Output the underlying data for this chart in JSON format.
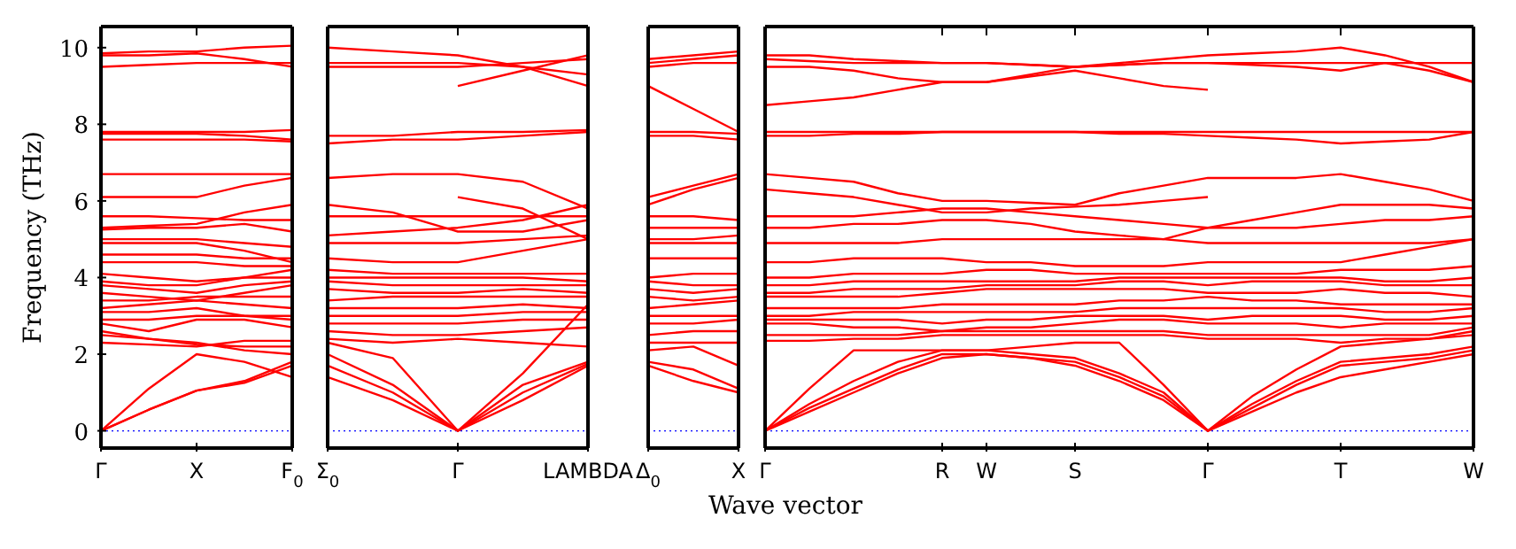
{
  "chart_data": [
    {
      "type": "line",
      "ylabel": "Frequency (THz)",
      "categories": [
        "Γ",
        null,
        "X",
        null,
        "F$_{0}$"
      ],
      "ylim": [
        -0.45,
        10.55
      ],
      "yticks": [
        0,
        2,
        4,
        6,
        8,
        10
      ],
      "grid": false,
      "ref_lines": [
        {
          "axis": "y",
          "value": 0,
          "color": "#0000ff",
          "line_style": "dotted"
        }
      ],
      "series": [
        {
          "color": "#ff0000",
          "values": [
            0,
            0.55,
            1.05,
            1.3,
            1.8
          ]
        },
        {
          "color": "#ff0000",
          "values": [
            0,
            0.55,
            1.05,
            1.25,
            1.7
          ]
        },
        {
          "color": "#ff0000",
          "values": [
            0,
            1.1,
            2.0,
            1.8,
            1.4
          ]
        },
        {
          "color": "#ff0000",
          "values": [
            2.3,
            2.25,
            2.2,
            2.35,
            2.35
          ]
        },
        {
          "color": "#ff0000",
          "values": [
            2.5,
            2.4,
            2.3,
            2.1,
            2.0
          ]
        },
        {
          "color": "#ff0000",
          "values": [
            2.6,
            2.4,
            2.25,
            2.2,
            2.2
          ]
        },
        {
          "color": "#ff0000",
          "values": [
            2.8,
            2.6,
            2.9,
            2.9,
            2.7
          ]
        },
        {
          "color": "#ff0000",
          "values": [
            2.9,
            2.9,
            3.0,
            3.0,
            3.0
          ]
        },
        {
          "color": "#ff0000",
          "values": [
            3.1,
            3.1,
            3.2,
            3.0,
            2.9
          ]
        },
        {
          "color": "#ff0000",
          "values": [
            3.2,
            3.3,
            3.4,
            3.3,
            3.2
          ]
        },
        {
          "color": "#ff0000",
          "values": [
            3.4,
            3.4,
            3.5,
            3.5,
            3.5
          ]
        },
        {
          "color": "#ff0000",
          "values": [
            3.6,
            3.5,
            3.4,
            3.6,
            3.8
          ]
        },
        {
          "color": "#ff0000",
          "values": [
            3.8,
            3.7,
            3.6,
            3.8,
            3.9
          ]
        },
        {
          "color": "#ff0000",
          "values": [
            3.9,
            3.8,
            3.8,
            4.0,
            4.2
          ]
        },
        {
          "color": "#ff0000",
          "values": [
            4.1,
            4.0,
            3.9,
            4.0,
            4.0
          ]
        },
        {
          "color": "#ff0000",
          "values": [
            4.4,
            4.4,
            4.4,
            4.3,
            4.3
          ]
        },
        {
          "color": "#ff0000",
          "values": [
            4.6,
            4.6,
            4.6,
            4.5,
            4.5
          ]
        },
        {
          "color": "#ff0000",
          "values": [
            4.9,
            4.9,
            4.9,
            4.7,
            4.4
          ]
        },
        {
          "color": "#ff0000",
          "values": [
            5.0,
            5.0,
            5.0,
            4.9,
            4.8
          ]
        },
        {
          "color": "#ff0000",
          "values": [
            5.25,
            5.3,
            5.3,
            5.4,
            5.2
          ]
        },
        {
          "color": "#ff0000",
          "values": [
            5.3,
            5.35,
            5.4,
            5.7,
            5.9
          ]
        },
        {
          "color": "#ff0000",
          "values": [
            5.6,
            5.6,
            5.55,
            5.5,
            5.5
          ]
        },
        {
          "color": "#ff0000",
          "values": [
            6.1,
            6.1,
            6.1,
            6.4,
            6.6
          ]
        },
        {
          "color": "#ff0000",
          "values": [
            6.7,
            6.7,
            6.7,
            6.7,
            6.7
          ]
        },
        {
          "color": "#ff0000",
          "values": [
            7.6,
            7.6,
            7.6,
            7.6,
            7.55
          ]
        },
        {
          "color": "#ff0000",
          "values": [
            7.75,
            7.75,
            7.75,
            7.7,
            7.6
          ]
        },
        {
          "color": "#ff0000",
          "values": [
            7.8,
            7.8,
            7.8,
            7.8,
            7.85
          ]
        },
        {
          "color": "#ff0000",
          "values": [
            9.5,
            9.55,
            9.6,
            9.6,
            9.6
          ]
        },
        {
          "color": "#ff0000",
          "values": [
            9.8,
            9.8,
            9.85,
            9.7,
            9.5
          ]
        },
        {
          "color": "#ff0000",
          "values": [
            9.85,
            9.9,
            9.9,
            10.0,
            10.05
          ]
        }
      ]
    },
    {
      "type": "line",
      "tick_labels": "x",
      "categories": [
        "Σ$_{0}$",
        null,
        "Γ",
        null,
        "LAMBDA"
      ],
      "ylim": [
        -0.45,
        10.55
      ],
      "grid": false,
      "ref_lines": [
        {
          "axis": "y",
          "value": 0,
          "color": "#0000ff",
          "line_style": "dotted"
        }
      ],
      "series": [
        {
          "color": "#ff0000",
          "values": [
            1.4,
            0.8,
            0,
            0.8,
            1.7
          ]
        },
        {
          "color": "#ff0000",
          "values": [
            1.7,
            1.0,
            0,
            1.0,
            1.75
          ]
        },
        {
          "color": "#ff0000",
          "values": [
            2.0,
            1.2,
            0,
            1.2,
            1.8
          ]
        },
        {
          "color": "#ff0000",
          "values": [
            2.3,
            1.9,
            0,
            1.5,
            3.3
          ]
        },
        {
          "color": "#ff0000",
          "values": [
            2.4,
            2.3,
            2.4,
            2.3,
            2.2
          ]
        },
        {
          "color": "#ff0000",
          "values": [
            2.6,
            2.5,
            2.5,
            2.6,
            2.7
          ]
        },
        {
          "color": "#ff0000",
          "values": [
            2.8,
            2.8,
            2.8,
            2.9,
            2.9
          ]
        },
        {
          "color": "#ff0000",
          "values": [
            3.0,
            3.0,
            3.0,
            3.1,
            3.1
          ]
        },
        {
          "color": "#ff0000",
          "values": [
            3.2,
            3.2,
            3.2,
            3.3,
            3.2
          ]
        },
        {
          "color": "#ff0000",
          "values": [
            3.4,
            3.5,
            3.5,
            3.5,
            3.5
          ]
        },
        {
          "color": "#ff0000",
          "values": [
            3.7,
            3.6,
            3.6,
            3.7,
            3.6
          ]
        },
        {
          "color": "#ff0000",
          "values": [
            3.9,
            3.8,
            3.8,
            3.8,
            3.8
          ]
        },
        {
          "color": "#ff0000",
          "values": [
            4.0,
            4.0,
            4.0,
            4.0,
            3.9
          ]
        },
        {
          "color": "#ff0000",
          "values": [
            4.2,
            4.1,
            4.1,
            4.1,
            4.1
          ]
        },
        {
          "color": "#ff0000",
          "values": [
            4.5,
            4.4,
            4.4,
            4.7,
            5.0
          ]
        },
        {
          "color": "#ff0000",
          "values": [
            4.9,
            4.9,
            4.9,
            5.0,
            5.1
          ]
        },
        {
          "color": "#ff0000",
          "values": [
            5.1,
            5.2,
            5.3,
            5.5,
            5.9
          ]
        },
        {
          "color": "#ff0000",
          "values": [
            5.6,
            5.6,
            5.6,
            5.6,
            5.6
          ]
        },
        {
          "color": "#ff0000",
          "values": [
            5.9,
            5.7,
            5.2,
            5.2,
            5.5
          ]
        },
        {
          "color": "#ff0000",
          "values": [
            6.6,
            6.7,
            6.7,
            6.5,
            5.8
          ]
        },
        {
          "color": "#ff0000",
          "values": [
            null,
            null,
            6.1,
            5.8,
            5.0
          ]
        },
        {
          "color": "#ff0000",
          "values": [
            7.5,
            7.6,
            7.6,
            7.7,
            7.8
          ]
        },
        {
          "color": "#ff0000",
          "values": [
            7.7,
            7.7,
            7.8,
            7.8,
            7.85
          ]
        },
        {
          "color": "#ff0000",
          "values": [
            9.5,
            9.5,
            9.5,
            9.6,
            9.7
          ]
        },
        {
          "color": "#ff0000",
          "values": [
            9.6,
            9.6,
            9.6,
            9.5,
            9.3
          ]
        },
        {
          "color": "#ff0000",
          "values": [
            null,
            null,
            9.0,
            9.4,
            9.8
          ]
        },
        {
          "color": "#ff0000",
          "values": [
            10.0,
            9.9,
            9.8,
            9.5,
            9.0
          ]
        }
      ]
    },
    {
      "type": "line",
      "tick_labels": "x",
      "categories": [
        "Δ$_{0}$",
        null,
        "X"
      ],
      "ylim": [
        -0.45,
        10.55
      ],
      "grid": false,
      "ref_lines": [
        {
          "axis": "y",
          "value": 0,
          "color": "#0000ff",
          "line_style": "dotted"
        }
      ],
      "series": [
        {
          "color": "#ff0000",
          "values": [
            1.7,
            1.3,
            1.0
          ]
        },
        {
          "color": "#ff0000",
          "values": [
            1.8,
            1.6,
            1.1
          ]
        },
        {
          "color": "#ff0000",
          "values": [
            2.1,
            2.2,
            1.7
          ]
        },
        {
          "color": "#ff0000",
          "values": [
            2.3,
            2.3,
            2.3
          ]
        },
        {
          "color": "#ff0000",
          "values": [
            2.5,
            2.6,
            2.6
          ]
        },
        {
          "color": "#ff0000",
          "values": [
            2.8,
            2.8,
            2.9
          ]
        },
        {
          "color": "#ff0000",
          "values": [
            3.0,
            3.0,
            3.0
          ]
        },
        {
          "color": "#ff0000",
          "values": [
            3.2,
            3.3,
            3.4
          ]
        },
        {
          "color": "#ff0000",
          "values": [
            3.5,
            3.4,
            3.5
          ]
        },
        {
          "color": "#ff0000",
          "values": [
            3.7,
            3.6,
            3.7
          ]
        },
        {
          "color": "#ff0000",
          "values": [
            3.9,
            3.8,
            3.8
          ]
        },
        {
          "color": "#ff0000",
          "values": [
            4.0,
            4.1,
            4.1
          ]
        },
        {
          "color": "#ff0000",
          "values": [
            4.5,
            4.5,
            4.5
          ]
        },
        {
          "color": "#ff0000",
          "values": [
            4.9,
            4.9,
            4.9
          ]
        },
        {
          "color": "#ff0000",
          "values": [
            5.0,
            5.0,
            5.1
          ]
        },
        {
          "color": "#ff0000",
          "values": [
            5.3,
            5.3,
            5.3
          ]
        },
        {
          "color": "#ff0000",
          "values": [
            5.6,
            5.6,
            5.5
          ]
        },
        {
          "color": "#ff0000",
          "values": [
            5.9,
            6.3,
            6.6
          ]
        },
        {
          "color": "#ff0000",
          "values": [
            6.1,
            6.4,
            6.7
          ]
        },
        {
          "color": "#ff0000",
          "values": [
            7.7,
            7.7,
            7.6
          ]
        },
        {
          "color": "#ff0000",
          "values": [
            7.8,
            7.8,
            7.75
          ]
        },
        {
          "color": "#ff0000",
          "values": [
            9.0,
            8.4,
            7.8
          ]
        },
        {
          "color": "#ff0000",
          "values": [
            9.5,
            9.6,
            9.6
          ]
        },
        {
          "color": "#ff0000",
          "values": [
            9.6,
            9.7,
            9.8
          ]
        },
        {
          "color": "#ff0000",
          "values": [
            9.7,
            9.8,
            9.9
          ]
        }
      ]
    },
    {
      "type": "line",
      "tick_labels": "x",
      "xlabel": "Wave vector",
      "categories": [
        "Γ",
        null,
        null,
        null,
        "R",
        "W",
        null,
        "S",
        null,
        null,
        "Γ",
        null,
        null,
        "T",
        null,
        null,
        "W"
      ],
      "ylim": [
        -0.45,
        10.55
      ],
      "grid": false,
      "ref_lines": [
        {
          "axis": "y",
          "value": 0,
          "color": "#0000ff",
          "line_style": "dotted"
        }
      ],
      "series": [
        {
          "color": "#ff0000",
          "values": [
            0,
            0.6,
            1.1,
            1.6,
            2.0,
            2.0,
            1.9,
            1.7,
            1.3,
            0.8,
            0,
            0.5,
            1.0,
            1.4,
            1.6,
            1.8,
            2.0
          ]
        },
        {
          "color": "#ff0000",
          "values": [
            0,
            0.5,
            1.0,
            1.5,
            1.9,
            2.0,
            1.9,
            1.8,
            1.4,
            0.9,
            0,
            0.6,
            1.2,
            1.7,
            1.8,
            1.9,
            2.1
          ]
        },
        {
          "color": "#ff0000",
          "values": [
            0,
            0.7,
            1.3,
            1.8,
            2.1,
            2.1,
            2.0,
            1.9,
            1.5,
            1.0,
            0,
            0.7,
            1.3,
            1.8,
            1.9,
            2.0,
            2.2
          ]
        },
        {
          "color": "#ff0000",
          "values": [
            0,
            1.1,
            2.1,
            2.1,
            2.1,
            2.1,
            2.2,
            2.3,
            2.3,
            1.2,
            0,
            0.9,
            1.6,
            2.2,
            2.3,
            2.4,
            2.6
          ]
        },
        {
          "color": "#ff0000",
          "values": [
            2.35,
            2.35,
            2.4,
            2.4,
            2.5,
            2.5,
            2.5,
            2.5,
            2.5,
            2.5,
            2.4,
            2.4,
            2.4,
            2.3,
            2.4,
            2.4,
            2.5
          ]
        },
        {
          "color": "#ff0000",
          "values": [
            2.5,
            2.5,
            2.5,
            2.5,
            2.6,
            2.6,
            2.6,
            2.6,
            2.6,
            2.6,
            2.5,
            2.5,
            2.5,
            2.5,
            2.5,
            2.5,
            2.7
          ]
        },
        {
          "color": "#ff0000",
          "values": [
            2.8,
            2.8,
            2.7,
            2.7,
            2.6,
            2.7,
            2.7,
            2.8,
            2.9,
            2.9,
            2.8,
            2.8,
            2.8,
            2.7,
            2.8,
            2.8,
            2.8
          ]
        },
        {
          "color": "#ff0000",
          "values": [
            2.9,
            2.9,
            2.9,
            2.9,
            2.8,
            2.9,
            2.9,
            3.0,
            3.0,
            3.0,
            2.9,
            3.0,
            3.0,
            3.0,
            2.9,
            2.9,
            3.0
          ]
        },
        {
          "color": "#ff0000",
          "values": [
            3.0,
            3.0,
            3.1,
            3.1,
            3.1,
            3.1,
            3.1,
            3.1,
            3.2,
            3.2,
            3.2,
            3.2,
            3.2,
            3.2,
            3.1,
            3.1,
            3.2
          ]
        },
        {
          "color": "#ff0000",
          "values": [
            3.2,
            3.2,
            3.2,
            3.2,
            3.3,
            3.3,
            3.3,
            3.3,
            3.4,
            3.4,
            3.5,
            3.4,
            3.4,
            3.3,
            3.3,
            3.3,
            3.3
          ]
        },
        {
          "color": "#ff0000",
          "values": [
            3.5,
            3.5,
            3.5,
            3.5,
            3.6,
            3.7,
            3.7,
            3.7,
            3.7,
            3.7,
            3.6,
            3.6,
            3.6,
            3.7,
            3.6,
            3.6,
            3.5
          ]
        },
        {
          "color": "#ff0000",
          "values": [
            3.6,
            3.6,
            3.7,
            3.7,
            3.7,
            3.8,
            3.8,
            3.8,
            3.9,
            3.9,
            3.8,
            3.9,
            3.9,
            3.9,
            3.8,
            3.8,
            3.8
          ]
        },
        {
          "color": "#ff0000",
          "values": [
            3.8,
            3.8,
            3.9,
            3.9,
            3.9,
            3.9,
            3.9,
            3.9,
            4.0,
            4.0,
            4.0,
            4.0,
            4.0,
            4.0,
            3.9,
            3.9,
            4.0
          ]
        },
        {
          "color": "#ff0000",
          "values": [
            4.0,
            4.0,
            4.1,
            4.1,
            4.1,
            4.2,
            4.2,
            4.1,
            4.1,
            4.1,
            4.1,
            4.1,
            4.1,
            4.2,
            4.2,
            4.2,
            4.3
          ]
        },
        {
          "color": "#ff0000",
          "values": [
            4.4,
            4.4,
            4.5,
            4.5,
            4.5,
            4.4,
            4.4,
            4.3,
            4.3,
            4.3,
            4.4,
            4.4,
            4.4,
            4.4,
            4.6,
            4.8,
            5.0
          ]
        },
        {
          "color": "#ff0000",
          "values": [
            4.9,
            4.9,
            4.9,
            4.9,
            5.0,
            5.0,
            5.0,
            5.0,
            5.0,
            5.0,
            4.9,
            4.9,
            4.9,
            4.9,
            4.9,
            4.9,
            5.0
          ]
        },
        {
          "color": "#ff0000",
          "values": [
            5.3,
            5.3,
            5.4,
            5.4,
            5.5,
            5.5,
            5.4,
            5.2,
            5.1,
            5.0,
            5.3,
            5.3,
            5.3,
            5.4,
            5.5,
            5.5,
            5.6
          ]
        },
        {
          "color": "#ff0000",
          "values": [
            5.6,
            5.6,
            5.6,
            5.7,
            5.8,
            5.8,
            5.7,
            5.6,
            5.5,
            5.4,
            5.3,
            5.5,
            5.7,
            5.9,
            5.9,
            5.9,
            5.8
          ]
        },
        {
          "color": "#ff0000",
          "values": [
            6.3,
            6.2,
            6.1,
            5.9,
            5.7,
            5.7,
            5.8,
            5.85,
            5.9,
            6.0,
            6.1,
            null,
            null,
            null,
            null,
            null,
            null
          ]
        },
        {
          "color": "#ff0000",
          "values": [
            6.7,
            6.6,
            6.5,
            6.2,
            6.0,
            6.0,
            5.95,
            5.9,
            6.2,
            6.4,
            6.6,
            6.6,
            6.6,
            6.7,
            6.5,
            6.3,
            6.0
          ]
        },
        {
          "color": "#ff0000",
          "values": [
            7.7,
            7.7,
            7.75,
            7.75,
            7.8,
            7.8,
            7.8,
            7.8,
            7.75,
            7.75,
            7.7,
            7.65,
            7.6,
            7.5,
            7.55,
            7.6,
            7.8
          ]
        },
        {
          "color": "#ff0000",
          "values": [
            7.8,
            7.8,
            7.8,
            7.8,
            7.8,
            7.8,
            7.8,
            7.8,
            7.8,
            7.8,
            7.8,
            7.8,
            7.8,
            7.8,
            7.8,
            7.8,
            7.8
          ]
        },
        {
          "color": "#ff0000",
          "values": [
            8.5,
            8.6,
            8.7,
            8.9,
            9.1,
            9.1,
            9.25,
            9.4,
            9.2,
            9.0,
            8.9,
            null,
            null,
            null,
            null,
            null,
            null
          ]
        },
        {
          "color": "#ff0000",
          "values": [
            9.5,
            9.5,
            9.4,
            9.2,
            9.1,
            9.1,
            9.3,
            9.5,
            9.55,
            9.6,
            9.6,
            9.55,
            9.5,
            9.4,
            9.6,
            9.4,
            9.1
          ]
        },
        {
          "color": "#ff0000",
          "values": [
            9.7,
            9.65,
            9.6,
            9.6,
            9.6,
            9.6,
            9.55,
            9.5,
            9.6,
            9.7,
            9.8,
            9.85,
            9.9,
            10.0,
            9.8,
            9.5,
            9.1
          ]
        },
        {
          "color": "#ff0000",
          "values": [
            9.8,
            9.8,
            9.7,
            9.65,
            9.6,
            9.6,
            9.55,
            9.5,
            9.55,
            9.6,
            9.6,
            9.6,
            9.6,
            9.6,
            9.6,
            9.6,
            9.6
          ]
        }
      ]
    }
  ]
}
